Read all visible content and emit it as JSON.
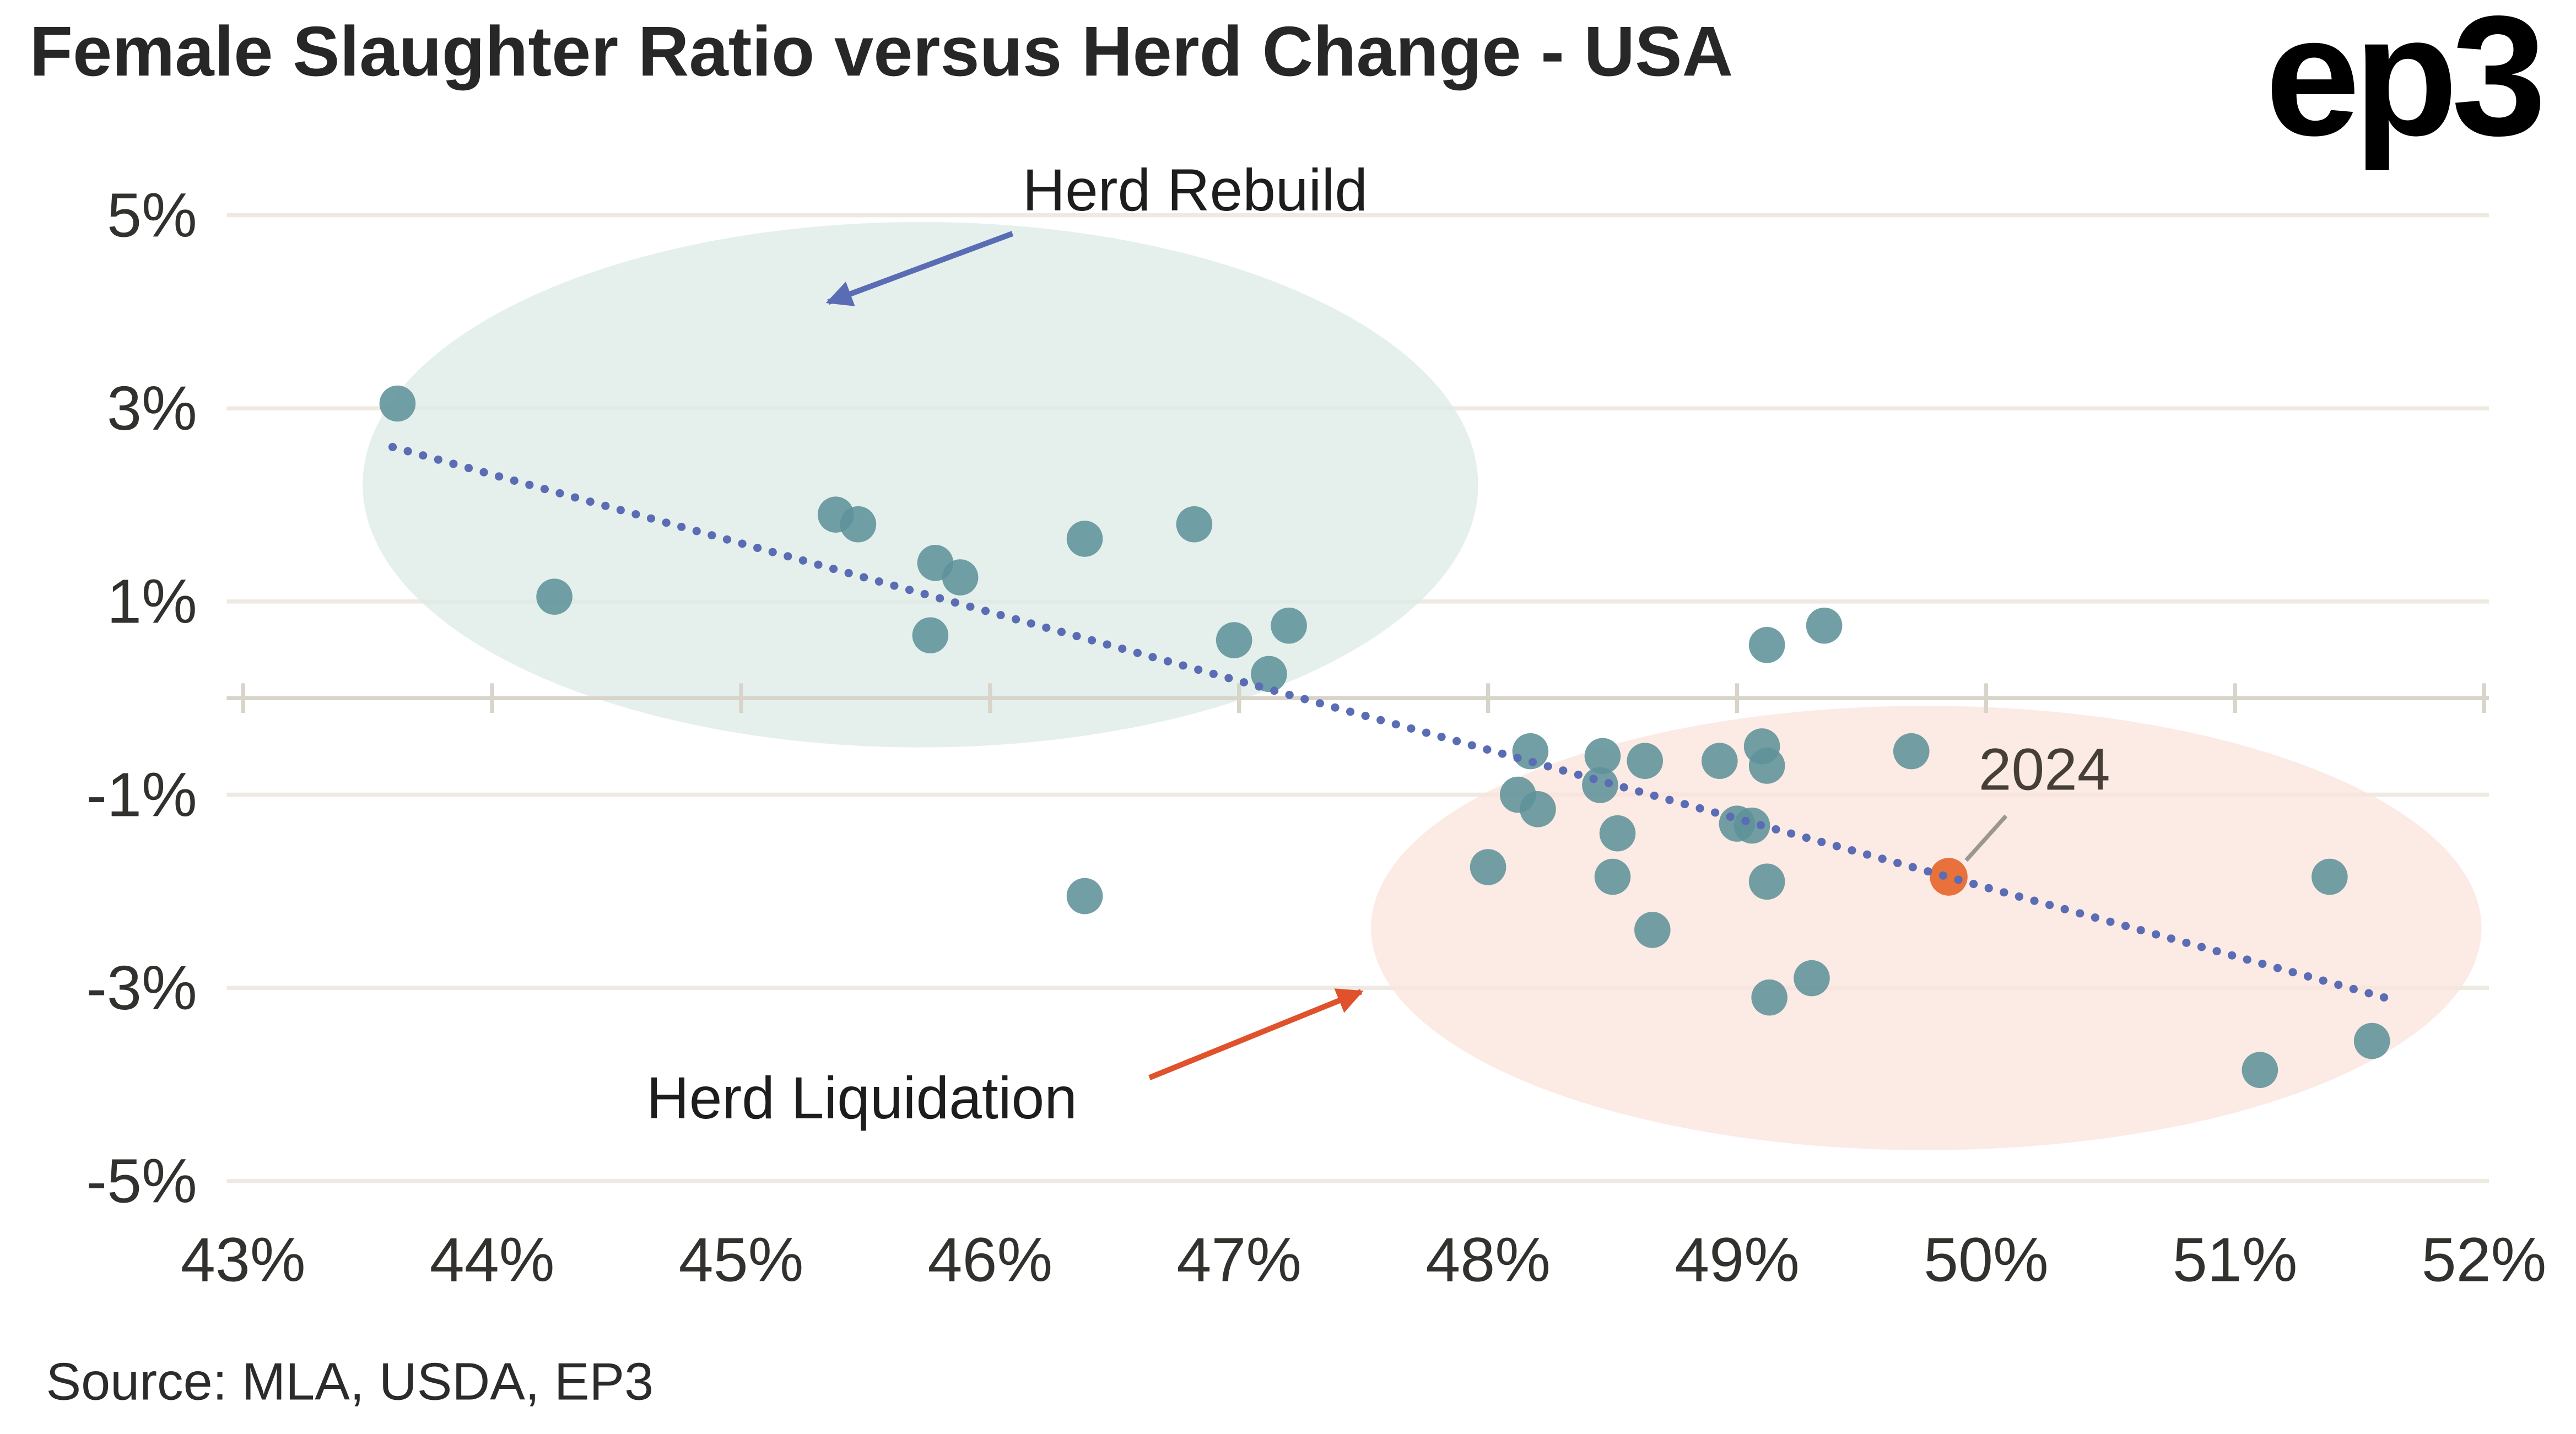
{
  "title": "Female Slaughter Ratio versus Herd Change - USA",
  "logo": "ep3",
  "source": "Source: MLA, USDA, EP3",
  "colors": {
    "dot": "#5e929a",
    "highlight": "#e8713c",
    "trend": "#5a6cb4",
    "grid": "#eeeae2",
    "axis": "#d8d4ca",
    "tick_label": "#33312e",
    "title_text": "#272727",
    "annotation_text": "#1d1d1d",
    "region_rebuild": "#dcebe7",
    "region_liquidation": "#fbe3dc",
    "arrow_rebuild": "#5a6cb4",
    "arrow_liquidation": "#e0522c",
    "leader": "#9b978f",
    "year_label": "#463f38"
  },
  "chart_data": {
    "type": "scatter",
    "title": "Female Slaughter Ratio versus Herd Change - USA",
    "xlabel": "",
    "ylabel": "",
    "xlim": [
      43,
      52
    ],
    "ylim": [
      -5,
      5
    ],
    "grid": "horizontal",
    "x_ticks": {
      "values": [
        43,
        44,
        45,
        46,
        47,
        48,
        49,
        50,
        51,
        52
      ],
      "labels": [
        "43%",
        "44%",
        "45%",
        "46%",
        "47%",
        "48%",
        "49%",
        "50%",
        "51%",
        "52%"
      ]
    },
    "y_ticks": {
      "values": [
        5,
        3,
        1,
        -1,
        -3,
        -5
      ],
      "labels": [
        "5%",
        "3%",
        "1%",
        "-1%",
        "-3%",
        "-5%"
      ]
    },
    "points": [
      [
        43.62,
        3.05
      ],
      [
        44.25,
        1.05
      ],
      [
        45.38,
        1.9
      ],
      [
        45.47,
        1.8
      ],
      [
        45.78,
        1.4
      ],
      [
        45.88,
        1.25
      ],
      [
        45.76,
        0.65
      ],
      [
        46.38,
        1.65
      ],
      [
        46.82,
        1.8
      ],
      [
        46.98,
        0.6
      ],
      [
        47.2,
        0.75
      ],
      [
        47.12,
        0.25
      ],
      [
        46.38,
        -2.05
      ],
      [
        48.17,
        -0.55
      ],
      [
        48.12,
        -1.0
      ],
      [
        48.2,
        -1.15
      ],
      [
        48.0,
        -1.75
      ],
      [
        48.46,
        -0.6
      ],
      [
        48.45,
        -0.9
      ],
      [
        48.63,
        -0.65
      ],
      [
        48.52,
        -1.4
      ],
      [
        48.5,
        -1.85
      ],
      [
        48.66,
        -2.4
      ],
      [
        48.93,
        -0.65
      ],
      [
        49.1,
        -0.5
      ],
      [
        49.12,
        -0.7
      ],
      [
        49.0,
        -1.3
      ],
      [
        49.06,
        -1.32
      ],
      [
        49.12,
        0.55
      ],
      [
        49.35,
        0.75
      ],
      [
        49.12,
        -1.9
      ],
      [
        49.13,
        -3.1
      ],
      [
        49.3,
        -2.9
      ],
      [
        49.7,
        -0.55
      ],
      [
        51.38,
        -1.85
      ],
      [
        51.1,
        -3.85
      ],
      [
        51.55,
        -3.55
      ]
    ],
    "highlight_point": {
      "x": 49.85,
      "y": -1.85,
      "label": "2024"
    },
    "trendline": {
      "style": "dotted",
      "x1": 43.6,
      "y1": 2.6,
      "x2": 51.6,
      "y2": -3.1
    },
    "regions": [
      {
        "id": "herd-rebuild",
        "label": "Herd Rebuild",
        "cx": 45.72,
        "cy": 2.21,
        "rx": 2.24,
        "ry": 2.72
      },
      {
        "id": "herd-liquidation",
        "label": "Herd Liquidation",
        "cx": 49.76,
        "cy": -2.38,
        "rx": 2.23,
        "ry": 2.3
      }
    ],
    "annotations": [
      {
        "id": "herd-rebuild",
        "label": "Herd Rebuild",
        "text_x": 46.13,
        "text_y": 5.05,
        "arrow": {
          "x1": 46.09,
          "y1": 4.81,
          "x2": 45.35,
          "y2": 4.1
        }
      },
      {
        "id": "herd-liquidation",
        "label": "Herd Liquidation",
        "text_x": 44.62,
        "text_y": -4.35,
        "arrow": {
          "x1": 46.64,
          "y1": -3.93,
          "x2": 47.49,
          "y2": -3.04
        }
      },
      {
        "id": "year-2024",
        "label": "2024",
        "text_x": 49.97,
        "text_y": -0.95,
        "leader": {
          "x1": 50.08,
          "y1": -1.22,
          "x2": 49.92,
          "y2": -1.68
        }
      }
    ],
    "legend": "none"
  }
}
